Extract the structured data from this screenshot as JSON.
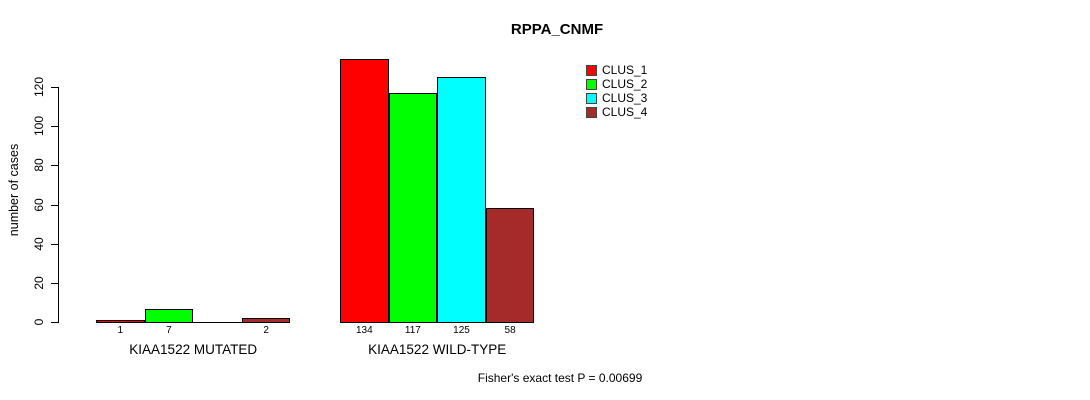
{
  "chart_data": {
    "type": "bar",
    "title": "RPPA_CNMF",
    "ylabel": "number of cases",
    "xlabel": "",
    "yticks": [
      0,
      20,
      40,
      60,
      80,
      100,
      120
    ],
    "ylim": [
      0,
      137
    ],
    "grid": false,
    "legend_position": "top-right",
    "series": [
      {
        "name": "CLUS_1",
        "color": "#FF0000"
      },
      {
        "name": "CLUS_2",
        "color": "#00FF00"
      },
      {
        "name": "CLUS_3",
        "color": "#00FFFF"
      },
      {
        "name": "CLUS_4",
        "color": "#A52A2A"
      }
    ],
    "groups": [
      {
        "label": "KIAA1522 MUTATED",
        "values": [
          1,
          7,
          0,
          2
        ],
        "value_labels": [
          "1",
          "7",
          "",
          "2"
        ]
      },
      {
        "label": "KIAA1522 WILD-TYPE",
        "values": [
          134,
          117,
          125,
          58
        ],
        "value_labels": [
          "134",
          "117",
          "125",
          "58"
        ]
      }
    ],
    "annotation": "Fisher's exact test P = 0.00699"
  }
}
